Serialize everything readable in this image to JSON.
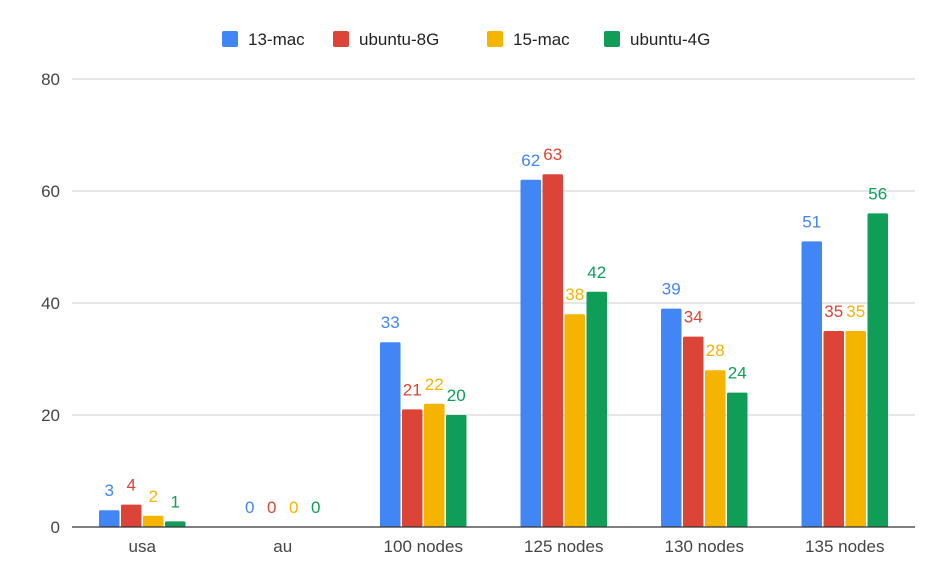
{
  "chart_data": {
    "type": "bar",
    "title": "",
    "xlabel": "",
    "ylabel": "",
    "categories": [
      "usa",
      "au",
      "100 nodes",
      "125 nodes",
      "130 nodes",
      "135 nodes"
    ],
    "series": [
      {
        "name": "13-mac",
        "color": "#4285F4",
        "values": [
          3,
          0,
          33,
          62,
          39,
          51
        ]
      },
      {
        "name": "ubuntu-8G",
        "color": "#DB4437",
        "values": [
          4,
          0,
          21,
          63,
          34,
          35
        ]
      },
      {
        "name": "15-mac",
        "color": "#F4B400",
        "values": [
          2,
          0,
          22,
          38,
          28,
          35
        ]
      },
      {
        "name": "ubuntu-4G",
        "color": "#0F9D58",
        "values": [
          1,
          0,
          20,
          42,
          24,
          56
        ]
      }
    ],
    "ylim": [
      0,
      80
    ],
    "yticks": [
      0,
      20,
      40,
      60,
      80
    ],
    "grid": true,
    "legend_position": "top"
  }
}
